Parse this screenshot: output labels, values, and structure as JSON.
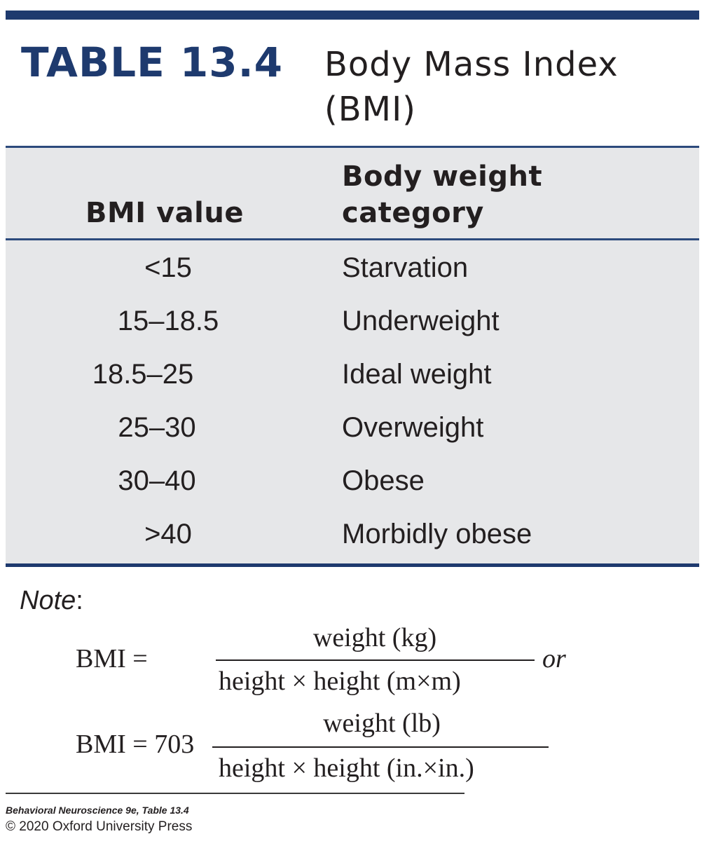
{
  "table": {
    "number": "TABLE 13.4",
    "title": "Body Mass Index (BMI)",
    "accent_color": "#1e3a6e",
    "panel_color": "#e6e7e9",
    "headers": {
      "bmi_value": "BMI value",
      "category": "Body weight category"
    },
    "rows": [
      {
        "value": "<15",
        "category": "Starvation"
      },
      {
        "value": "15–18.5",
        "category": "Underweight"
      },
      {
        "value": "18.5–25",
        "category": "Ideal weight"
      },
      {
        "value": "25–30",
        "category": "Overweight"
      },
      {
        "value": "30–40",
        "category": "Obese"
      },
      {
        "value": ">40",
        "category": "Morbidly obese"
      }
    ]
  },
  "note": {
    "label": "Note",
    "colon": ":",
    "formula_metric": {
      "lhs": "BMI =",
      "numerator": "weight (kg)",
      "denominator": "height × height (m×m)",
      "connector": "or"
    },
    "formula_imperial": {
      "lhs": "BMI = 703",
      "numerator": "weight (lb)",
      "denominator": "height × height (in.×in.)"
    }
  },
  "credit": {
    "source": "Behavioral Neuroscience 9e, Table 13.4",
    "copyright": "© 2020 Oxford University Press"
  }
}
